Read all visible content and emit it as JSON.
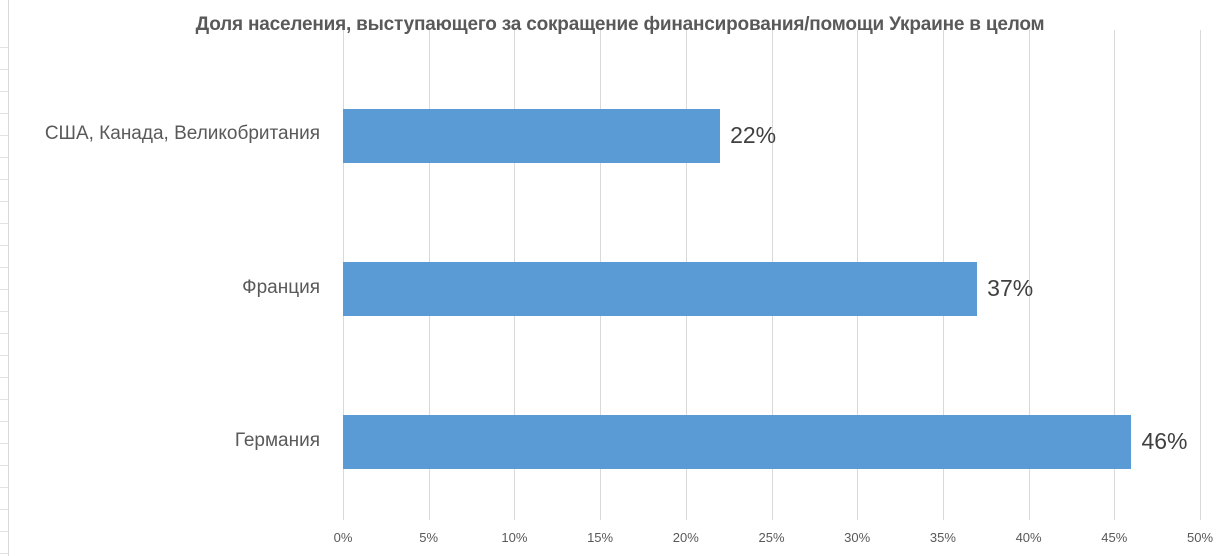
{
  "chart_data": {
    "type": "bar",
    "orientation": "horizontal",
    "title": "Доля населения, выступающего за сокращение финансирования/помощи Украине в целом",
    "categories": [
      "США, Канада, Великобритания",
      "Франция",
      "Германия"
    ],
    "values": [
      22,
      37,
      46
    ],
    "value_labels": [
      "22%",
      "37%",
      "46%"
    ],
    "xlabel": "",
    "ylabel": "",
    "xlim": [
      0,
      50
    ],
    "x_ticks": [
      "0%",
      "5%",
      "10%",
      "15%",
      "20%",
      "25%",
      "30%",
      "35%",
      "40%",
      "45%",
      "50%"
    ],
    "grid": "vertical",
    "legend": "none",
    "bar_color": "#5b9bd5"
  }
}
